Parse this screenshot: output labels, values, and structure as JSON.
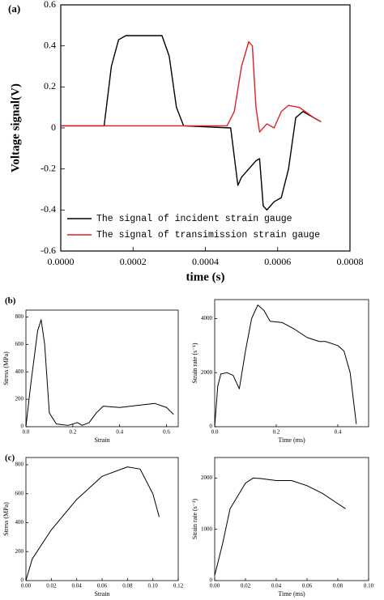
{
  "chart_data": [
    {
      "type": "line",
      "panel": "(a)",
      "xlabel": "time (s)",
      "ylabel": "Voltage signal(V)",
      "xlim": [
        0,
        0.0008
      ],
      "xticks": [
        {
          "value": 0,
          "label": "0.0000"
        },
        0.0002,
        0.0004,
        0.0006,
        0.0008
      ],
      "ylim": [
        -0.6,
        0.6
      ],
      "yticks": [
        -0.6,
        -0.4,
        -0.2,
        0,
        0.2,
        0.4,
        0.6
      ],
      "legend": "lower-left",
      "series": [
        {
          "name": "The signal of incident strain gauge",
          "color": "#000000",
          "x": [
            0,
            0.00012,
            0.00014,
            0.00016,
            0.00018,
            0.00028,
            0.0003,
            0.00032,
            0.00034,
            0.00047,
            0.00049,
            0.0005,
            0.00052,
            0.00054,
            0.00055,
            0.00056,
            0.00057,
            0.00059,
            0.00061,
            0.00063,
            0.00065,
            0.00067,
            0.0007,
            0.00072
          ],
          "values": [
            0.01,
            0.01,
            0.3,
            0.43,
            0.45,
            0.45,
            0.35,
            0.1,
            0.01,
            0,
            -0.28,
            -0.24,
            -0.2,
            -0.16,
            -0.15,
            -0.38,
            -0.4,
            -0.36,
            -0.34,
            -0.2,
            0.05,
            0.08,
            0.05,
            0.03
          ]
        },
        {
          "name": "The signal of transimission strain gauge",
          "color": "#e02020",
          "x": [
            0,
            0.00046,
            0.00048,
            0.0005,
            0.00052,
            0.00053,
            0.00054,
            0.00055,
            0.00057,
            0.00059,
            0.00061,
            0.00063,
            0.00066,
            0.0007,
            0.00072
          ],
          "values": [
            0.01,
            0.01,
            0.08,
            0.3,
            0.42,
            0.4,
            0.1,
            -0.02,
            0.02,
            0,
            0.08,
            0.11,
            0.1,
            0.05,
            0.03
          ]
        }
      ]
    },
    {
      "type": "line",
      "panel": "(b)",
      "xlabel": "Strain",
      "ylabel": "Stress (MPa)",
      "color": "#000000",
      "xlim": [
        0,
        0.65
      ],
      "xticks": [
        {
          "value": 0,
          "label": "0.0"
        },
        0.2,
        0.4,
        0.6
      ],
      "ylim": [
        0,
        850
      ],
      "yticks": [
        0,
        200,
        400,
        600,
        800
      ],
      "x": [
        0,
        0.02,
        0.05,
        0.065,
        0.08,
        0.1,
        0.13,
        0.18,
        0.22,
        0.24,
        0.27,
        0.3,
        0.33,
        0.4,
        0.5,
        0.55,
        0.6,
        0.63
      ],
      "values": [
        0,
        300,
        700,
        780,
        600,
        100,
        20,
        10,
        30,
        10,
        30,
        100,
        150,
        140,
        160,
        170,
        140,
        90
      ]
    },
    {
      "type": "line",
      "xlabel": "Time (ms)",
      "ylabel": "Strain rate (s⁻¹)",
      "color": "#000000",
      "xlim": [
        0,
        0.5
      ],
      "xticks": [
        {
          "value": 0,
          "label": "0.0"
        },
        0.2,
        0.4
      ],
      "ylim": [
        0,
        4700
      ],
      "yticks": [
        0,
        2000,
        4000
      ],
      "x": [
        0,
        0.01,
        0.02,
        0.04,
        0.06,
        0.08,
        0.1,
        0.12,
        0.14,
        0.16,
        0.18,
        0.22,
        0.26,
        0.3,
        0.34,
        0.36,
        0.4,
        0.42,
        0.44,
        0.46
      ],
      "values": [
        0,
        1500,
        1950,
        2000,
        1900,
        1400,
        2800,
        4000,
        4500,
        4300,
        3900,
        3850,
        3600,
        3300,
        3150,
        3150,
        3000,
        2800,
        2000,
        100
      ]
    },
    {
      "type": "line",
      "panel": "(c)",
      "xlabel": "Strain",
      "ylabel": "Stress (MPa)",
      "color": "#000000",
      "xlim": [
        0,
        0.12
      ],
      "xticks": [
        {
          "value": 0,
          "label": "0.00"
        },
        0.02,
        0.04,
        0.06,
        0.08,
        {
          "value": 0.1,
          "label": "0.10"
        },
        0.12
      ],
      "ylim": [
        0,
        850
      ],
      "yticks": [
        0,
        200,
        400,
        600,
        800
      ],
      "x": [
        0,
        0.005,
        0.02,
        0.04,
        0.06,
        0.08,
        0.09,
        0.1,
        0.105
      ],
      "values": [
        0,
        150,
        350,
        560,
        720,
        785,
        770,
        600,
        440
      ]
    },
    {
      "type": "line",
      "xlabel": "Time (ms)",
      "ylabel": "Strain rate (s⁻¹)",
      "color": "#000000",
      "xlim": [
        0,
        0.1
      ],
      "xticks": [
        {
          "value": 0,
          "label": "0.00"
        },
        0.02,
        0.04,
        0.06,
        0.08,
        {
          "value": 0.1,
          "label": "0.10"
        }
      ],
      "ylim": [
        0,
        2400
      ],
      "yticks": [
        0,
        1000,
        2000
      ],
      "x": [
        0,
        0.005,
        0.01,
        0.02,
        0.025,
        0.03,
        0.04,
        0.05,
        0.06,
        0.07,
        0.08,
        0.085
      ],
      "values": [
        100,
        700,
        1400,
        1900,
        2000,
        1990,
        1950,
        1950,
        1850,
        1700,
        1500,
        1400
      ]
    }
  ]
}
